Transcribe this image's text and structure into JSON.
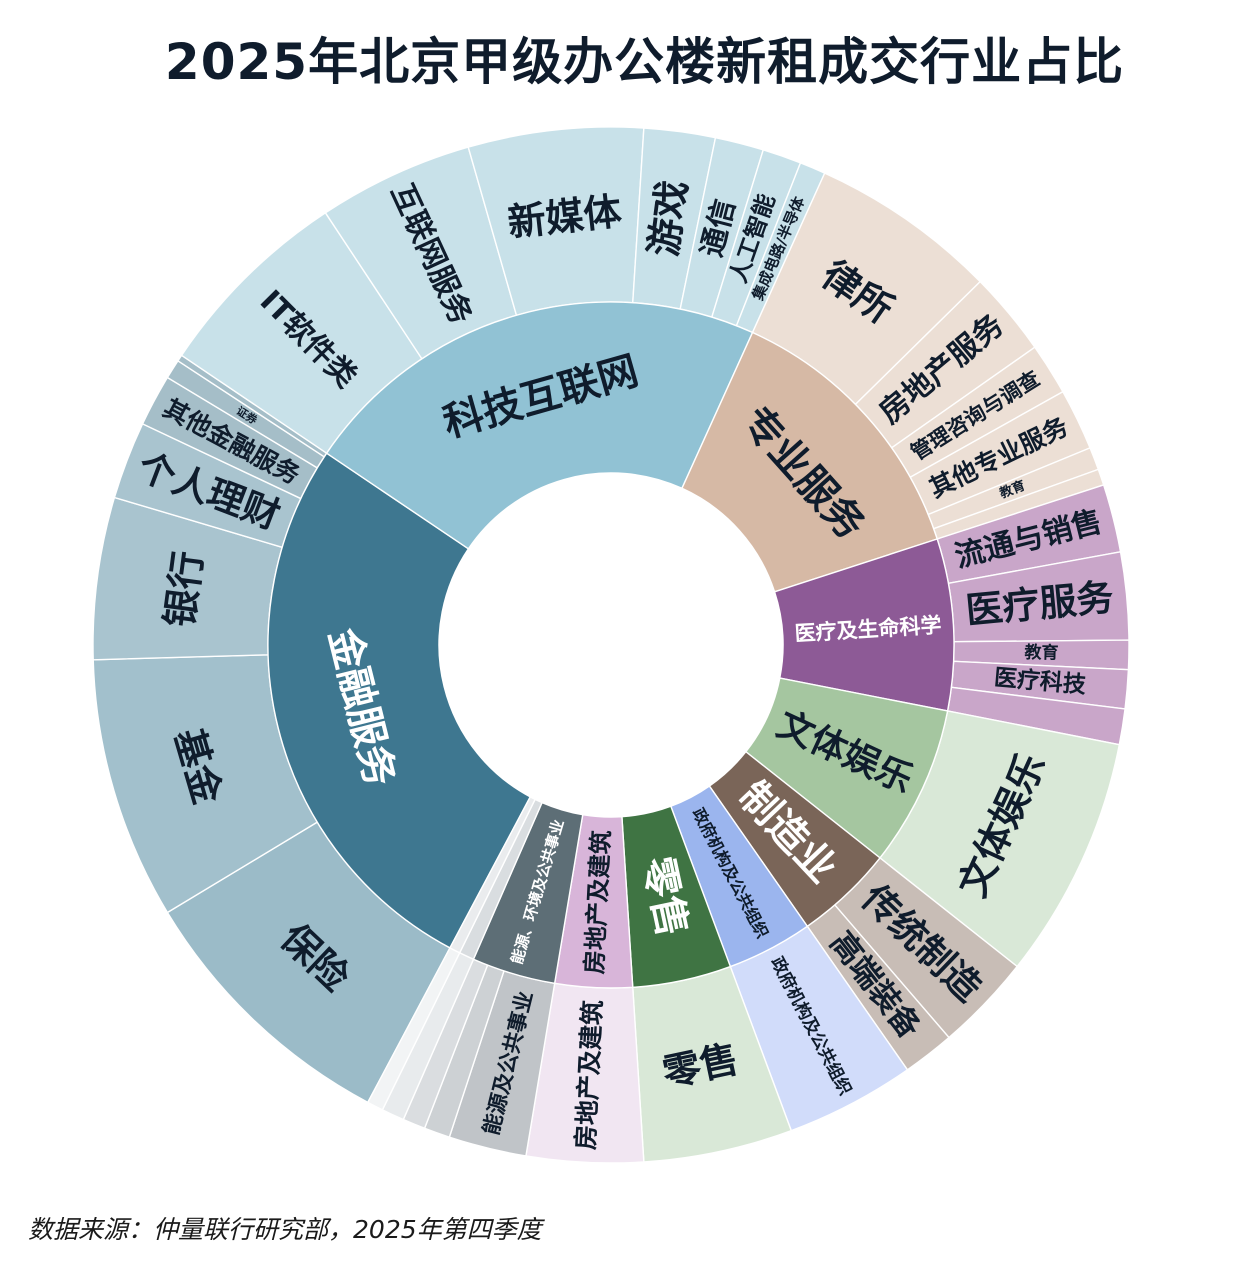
{
  "chart_data": {
    "type": "sunburst",
    "title": "2025年北京甲级办公楼新租成交行业占比",
    "source": "数据来源：仲量联行研究部，2025年第四季度",
    "inner": [
      {
        "name": "金融服务",
        "value": 26.4,
        "color": "#3e7790",
        "text_color": "#ffffff"
      },
      {
        "name": "科技互联网",
        "value": 22.1,
        "color": "#91c2d4",
        "text_color": "#0f1c2c"
      },
      {
        "name": "专业服务",
        "value": 13.1,
        "color": "#d6b9a5",
        "text_color": "#0f1c2c"
      },
      {
        "name": "医疗及生命科学",
        "value": 8.0,
        "color": "#8d5a96",
        "text_color": "#ffffff"
      },
      {
        "name": "文体娱乐",
        "value": 7.5,
        "color": "#a5c6a0",
        "text_color": "#0f1c2c"
      },
      {
        "name": "制造业",
        "value": 4.6,
        "color": "#7a6558",
        "text_color": "#ffffff"
      },
      {
        "name": "政府机构及公共组织",
        "value": 4.0,
        "color": "#9bb5ee",
        "text_color": "#0f1c2c"
      },
      {
        "name": "零售",
        "value": 4.6,
        "color": "#3f7443",
        "text_color": "#ffffff"
      },
      {
        "name": "房地产及建筑",
        "value": 3.6,
        "color": "#d8b5d9",
        "text_color": "#0f1c2c"
      },
      {
        "name": "能源、环境及公共事业",
        "value": 3.9,
        "color": "#5d6e76",
        "text_color": "#ffffff"
      },
      {
        "name": "",
        "value": 0.7,
        "color": "#d9dde0",
        "text_color": "#0f1c2c"
      },
      {
        "name": "",
        "value": 0.5,
        "color": "#eaecee",
        "text_color": "#0f1c2c"
      }
    ],
    "outer": [
      {
        "name": "保险",
        "value": 8.5,
        "color": "#9bbbc8"
      },
      {
        "name": "基金",
        "value": 8.1,
        "color": "#a2c0cc"
      },
      {
        "name": "银行",
        "value": 5.0,
        "color": "#a9c4cf"
      },
      {
        "name": "个人理财",
        "value": 2.4,
        "color": "#a9c4cf"
      },
      {
        "name": "其他金融服务",
        "value": 1.6,
        "color": "#a5bec8"
      },
      {
        "name": "证券",
        "value": 0.6,
        "color": "#a5bec8"
      },
      {
        "name": "",
        "value": 0.2,
        "color": "#a5bec8"
      },
      {
        "name": "IT软件类",
        "value": 6.2,
        "color": "#c8e1e9"
      },
      {
        "name": "互联网服务",
        "value": 4.8,
        "color": "#c8e1e9"
      },
      {
        "name": "新媒体",
        "value": 5.4,
        "color": "#c8e1e9"
      },
      {
        "name": "游戏",
        "value": 2.2,
        "color": "#c8e1e9"
      },
      {
        "name": "通信",
        "value": 1.5,
        "color": "#c8e1e9"
      },
      {
        "name": "人工智能",
        "value": 1.2,
        "color": "#c8e1e9"
      },
      {
        "name": "集成电路/半导体",
        "value": 0.8,
        "color": "#c8e1e9"
      },
      {
        "name": "律所",
        "value": 5.8,
        "color": "#ecdfd5"
      },
      {
        "name": "房地产服务",
        "value": 2.6,
        "color": "#ecdfd5"
      },
      {
        "name": "管理咨询与调查",
        "value": 1.6,
        "color": "#ecdfd5"
      },
      {
        "name": "其他专业服务",
        "value": 1.9,
        "color": "#ecdfd5"
      },
      {
        "name": "教育",
        "value": 0.7,
        "color": "#ecdfd5"
      },
      {
        "name": "",
        "value": 0.5,
        "color": "#ecdfd5"
      },
      {
        "name": "流通与销售",
        "value": 2.1,
        "color": "#c9a6c9"
      },
      {
        "name": "医疗服务",
        "value": 2.7,
        "color": "#c9a6c9"
      },
      {
        "name": "教育",
        "value": 0.9,
        "color": "#c9a6c9"
      },
      {
        "name": "医疗科技",
        "value": 1.2,
        "color": "#c9a6c9"
      },
      {
        "name": "",
        "value": 1.1,
        "color": "#c9a6c9"
      },
      {
        "name": "文体娱乐",
        "value": 7.5,
        "color": "#d9e8d7"
      },
      {
        "name": "传统制造",
        "value": 3.0,
        "color": "#c8bdb6"
      },
      {
        "name": "高端装备",
        "value": 1.6,
        "color": "#c8bdb6"
      },
      {
        "name": "政府机构及公共组织",
        "value": 4.0,
        "color": "#d1dcfa"
      },
      {
        "name": "零售",
        "value": 4.6,
        "color": "#d9e8d7"
      },
      {
        "name": "房地产及建筑",
        "value": 3.6,
        "color": "#f1e6f2"
      },
      {
        "name": "能源及公共事业",
        "value": 2.4,
        "color": "#c0c4c8"
      },
      {
        "name": "",
        "value": 0.8,
        "color": "#cdd1d4"
      },
      {
        "name": "",
        "value": 0.7,
        "color": "#dadde0"
      },
      {
        "name": "",
        "value": 0.7,
        "color": "#e8ebed"
      },
      {
        "name": "",
        "value": 0.5,
        "color": "#f2f4f5"
      }
    ]
  }
}
